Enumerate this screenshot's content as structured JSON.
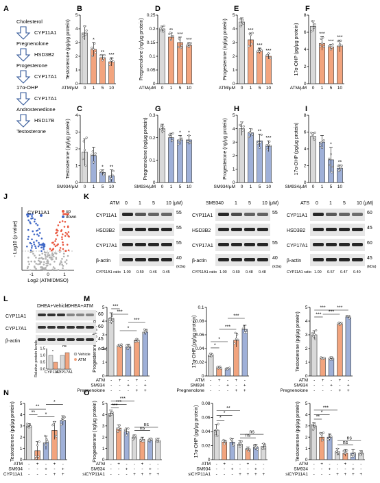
{
  "panel_labels": [
    "A",
    "B",
    "C",
    "D",
    "E",
    "F",
    "G",
    "H",
    "I",
    "J",
    "K",
    "L",
    "M",
    "N",
    "O"
  ],
  "pathway": {
    "steps": [
      "Cholesterol",
      "CYP11A1",
      "Pregnenolone",
      "HSD3B2",
      "Progesterone",
      "CYP17A1",
      "17α-OHP",
      "CYP17A1",
      "Androstenedione",
      "HSD17B",
      "Testosterone"
    ]
  },
  "colors": {
    "atm": "#f2a47e",
    "sm934": "#9fb0d8",
    "vehicle": "#d9d9d9",
    "dhea_atm": "#f2a47e",
    "up": "#e9573f",
    "down": "#4169c7",
    "ns": "#b0b0b0"
  },
  "chart_data": [
    {
      "id": "B",
      "type": "bar",
      "ylabel": "Testosterone (pg/μg protein)",
      "xlabel": "ATM/μM",
      "categories": [
        "0",
        "1",
        "5",
        "10"
      ],
      "values": [
        3.7,
        2.5,
        1.9,
        1.6
      ],
      "errors": [
        0.5,
        0.5,
        0.2,
        0.3
      ],
      "ylim": [
        0,
        5
      ],
      "yticks": [
        0,
        1,
        2,
        3,
        4,
        5
      ],
      "sig": [
        "",
        "*",
        "**",
        "***"
      ],
      "treat": "atm"
    },
    {
      "id": "D",
      "type": "bar",
      "ylabel": "Pregnenolone (ng/μg protein)",
      "xlabel": "ATM/μM",
      "categories": [
        "0",
        "1",
        "5",
        "10"
      ],
      "values": [
        0.2,
        0.17,
        0.15,
        0.14
      ],
      "errors": [
        0.01,
        0.015,
        0.02,
        0.01
      ],
      "ylim": [
        0,
        0.25
      ],
      "yticks": [
        0,
        0.05,
        0.1,
        0.15,
        0.2,
        0.25
      ],
      "sig": [
        "",
        "**",
        "***",
        "***"
      ],
      "treat": "atm"
    },
    {
      "id": "E",
      "type": "bar",
      "ylabel": "Progesterone (ng/μg protein)",
      "xlabel": "ATM/μM",
      "categories": [
        "0",
        "1",
        "5",
        "10"
      ],
      "values": [
        4.5,
        3.2,
        2.4,
        2.0
      ],
      "errors": [
        0.3,
        0.5,
        0.2,
        0.2
      ],
      "ylim": [
        0,
        5
      ],
      "yticks": [
        0,
        1,
        2,
        3,
        4,
        5
      ],
      "sig": [
        "",
        "***",
        "***",
        "***"
      ],
      "treat": "atm"
    },
    {
      "id": "F",
      "type": "bar",
      "ylabel": "17α-OHP (pg/μg protein)",
      "xlabel": "ATM/μM",
      "categories": [
        "0",
        "1",
        "5",
        "10"
      ],
      "values": [
        6.7,
        4.7,
        4.3,
        4.4
      ],
      "errors": [
        0.6,
        0.8,
        0.3,
        0.7
      ],
      "ylim": [
        0,
        8
      ],
      "yticks": [
        0,
        2,
        4,
        6,
        8
      ],
      "sig": [
        "",
        "***",
        "***",
        "***"
      ],
      "treat": "atm"
    },
    {
      "id": "C",
      "type": "bar",
      "ylabel": "Testosterone (pg/μg protein)",
      "xlabel": "SM934/μM",
      "categories": [
        "0",
        "1",
        "5",
        "10"
      ],
      "values": [
        1.8,
        1.6,
        0.6,
        0.4
      ],
      "errors": [
        0.8,
        0.5,
        0.15,
        0.35
      ],
      "ylim": [
        0,
        4
      ],
      "yticks": [
        0,
        1,
        2,
        3,
        4
      ],
      "sig": [
        "",
        "",
        "*",
        "**"
      ],
      "treat": "sm934"
    },
    {
      "id": "G",
      "type": "bar",
      "ylabel": "Pregnenolone (ng/μg protein)",
      "xlabel": "SM934/μM",
      "categories": [
        "0",
        "1",
        "5",
        "10"
      ],
      "values": [
        0.24,
        0.2,
        0.19,
        0.19
      ],
      "errors": [
        0.02,
        0.02,
        0.02,
        0.02
      ],
      "ylim": [
        0,
        0.3
      ],
      "yticks": [
        0,
        0.1,
        0.2,
        0.3
      ],
      "sig": [
        "",
        "",
        "*",
        "*"
      ],
      "treat": "sm934"
    },
    {
      "id": "H",
      "type": "bar",
      "ylabel": "Progesterone (ng/μg protein)",
      "xlabel": "SM934/μM",
      "categories": [
        "0",
        "1",
        "5",
        "10"
      ],
      "values": [
        4.0,
        3.7,
        3.1,
        2.7
      ],
      "errors": [
        0.5,
        0.3,
        0.5,
        0.4
      ],
      "ylim": [
        0,
        5
      ],
      "yticks": [
        0,
        1,
        2,
        3,
        4,
        5
      ],
      "sig": [
        "",
        "",
        "**",
        "***"
      ],
      "treat": "sm934"
    },
    {
      "id": "I",
      "type": "bar",
      "ylabel": "17α-OHP (pg/μg protein)",
      "xlabel": "SM934/μM",
      "categories": [
        "0",
        "1",
        "5",
        "10"
      ],
      "values": [
        5.5,
        4.8,
        2.7,
        1.7
      ],
      "errors": [
        0.4,
        0.8,
        1.5,
        0.4
      ],
      "ylim": [
        0,
        8
      ],
      "yticks": [
        0,
        2,
        4,
        6,
        8
      ],
      "sig": [
        "",
        "",
        "*",
        "**"
      ],
      "treat": "sm934"
    },
    {
      "id": "M1",
      "type": "bar",
      "ylabel": "Progesterone (ng/μg protein)",
      "categories": [
        "1",
        "2",
        "3",
        "4",
        "5"
      ],
      "values": [
        4.2,
        2.2,
        2.1,
        2.6,
        3.2
      ],
      "errors": [
        0.4,
        0.1,
        0.2,
        0.1,
        0.2
      ],
      "ylim": [
        0,
        5
      ],
      "yticks": [
        0,
        1,
        2,
        3,
        4,
        5
      ],
      "treat": "m",
      "rows": [
        {
          "label": "ATM",
          "marks": [
            "-",
            "+",
            "-",
            "+",
            "-"
          ]
        },
        {
          "label": "SM934",
          "marks": [
            "-",
            "-",
            "+",
            "-",
            "+"
          ]
        },
        {
          "label": "Pregnenolone",
          "marks": [
            "-",
            "-",
            "-",
            "+",
            "+"
          ]
        }
      ],
      "brackets": [
        {
          "a": 0,
          "b": 1,
          "y": 4.9,
          "t": "***"
        },
        {
          "a": 0,
          "b": 2,
          "y": 4.5,
          "t": "***"
        },
        {
          "a": 1,
          "b": 3,
          "y": 3.3,
          "t": "*"
        },
        {
          "a": 2,
          "b": 4,
          "y": 3.9,
          "t": "***"
        }
      ]
    },
    {
      "id": "M2",
      "type": "bar",
      "ylabel": "17α-OHP (pg/μg protein)",
      "categories": [
        "1",
        "2",
        "3",
        "4",
        "5"
      ],
      "values": [
        0.03,
        0.012,
        0.011,
        0.052,
        0.068
      ],
      "errors": [
        0.003,
        0.002,
        0.001,
        0.01,
        0.006
      ],
      "ylim": [
        0,
        0.1
      ],
      "yticks": [
        0,
        0.02,
        0.04,
        0.06,
        0.08,
        0.1
      ],
      "treat": "m",
      "rows": [
        {
          "label": "ATM",
          "marks": [
            "-",
            "+",
            "-",
            "+",
            "-"
          ]
        },
        {
          "label": "SM934",
          "marks": [
            "-",
            "-",
            "+",
            "-",
            "+"
          ]
        },
        {
          "label": "Pregnenolone",
          "marks": [
            "-",
            "-",
            "-",
            "+",
            "+"
          ]
        }
      ],
      "brackets": [
        {
          "a": 0,
          "b": 1,
          "y": 0.041,
          "t": "*"
        },
        {
          "a": 0,
          "b": 2,
          "y": 0.05,
          "t": "*"
        },
        {
          "a": 1,
          "b": 3,
          "y": 0.068,
          "t": "***"
        },
        {
          "a": 2,
          "b": 4,
          "y": 0.084,
          "t": "***"
        }
      ]
    },
    {
      "id": "M3",
      "type": "bar",
      "ylabel": "Testosterone (pg/μg protein)",
      "categories": [
        "1",
        "2",
        "3",
        "4",
        "5"
      ],
      "values": [
        3.0,
        1.3,
        1.3,
        3.8,
        4.3
      ],
      "errors": [
        0.3,
        0.05,
        0.1,
        0.1,
        0.1
      ],
      "ylim": [
        0,
        5
      ],
      "yticks": [
        0,
        1,
        2,
        3,
        4,
        5
      ],
      "treat": "m",
      "rows": [
        {
          "label": "ATM",
          "marks": [
            "-",
            "+",
            "-",
            "+",
            "-"
          ]
        },
        {
          "label": "SM934",
          "marks": [
            "-",
            "-",
            "+",
            "-",
            "+"
          ]
        },
        {
          "label": "Pregnenolone",
          "marks": [
            "-",
            "-",
            "-",
            "+",
            "+"
          ]
        }
      ],
      "brackets": [
        {
          "a": 0,
          "b": 1,
          "y": 4.3,
          "t": "***"
        },
        {
          "a": 0,
          "b": 2,
          "y": 4.8,
          "t": "***"
        },
        {
          "a": 1,
          "b": 3,
          "y": 4.5,
          "t": "***"
        },
        {
          "a": 2,
          "b": 4,
          "y": 4.8,
          "t": "***"
        }
      ]
    },
    {
      "id": "N",
      "type": "bar",
      "ylabel": "Testosterone (pg/μg protein)",
      "categories": [
        "1",
        "2",
        "3",
        "4",
        "5"
      ],
      "values": [
        3.0,
        0.8,
        1.5,
        2.6,
        3.5
      ],
      "errors": [
        0.2,
        0.8,
        0.6,
        0.8,
        0.4
      ],
      "ylim": [
        0,
        5
      ],
      "yticks": [
        0,
        1,
        2,
        3,
        4,
        5
      ],
      "treat": "n",
      "rows": [
        {
          "label": "ATM",
          "marks": [
            "-",
            "+",
            "-",
            "+",
            "-"
          ]
        },
        {
          "label": "SM934",
          "marks": [
            "-",
            "-",
            "+",
            "-",
            "+"
          ]
        },
        {
          "label": "CYP11A1",
          "marks": [
            "-",
            "-",
            "-",
            "+",
            "+"
          ]
        }
      ],
      "brackets": [
        {
          "a": 0,
          "b": 1,
          "y": 4.0,
          "t": "**"
        },
        {
          "a": 0,
          "b": 2,
          "y": 4.5,
          "t": "**"
        },
        {
          "a": 1,
          "b": 3,
          "y": 3.8,
          "t": "*"
        },
        {
          "a": 2,
          "b": 4,
          "y": 4.9,
          "t": "*"
        }
      ]
    },
    {
      "id": "O1",
      "type": "bar",
      "ylabel": "Progesterone (ng/μg protein)",
      "categories": [
        "1",
        "2",
        "3",
        "4",
        "5",
        "6",
        "7"
      ],
      "values": [
        4.1,
        2.8,
        2.5,
        2.0,
        1.8,
        1.7,
        1.7
      ],
      "errors": [
        0.3,
        0.3,
        0.3,
        0.2,
        0.2,
        0.2,
        0.2
      ],
      "ylim": [
        0,
        5
      ],
      "yticks": [
        0,
        1,
        2,
        3,
        4,
        5
      ],
      "treat": "o",
      "rows": [
        {
          "label": "ATM",
          "marks": [
            "-",
            "+",
            "-",
            "-",
            "+",
            "-",
            "-"
          ]
        },
        {
          "label": "SM934",
          "marks": [
            "-",
            "-",
            "+",
            "-",
            "-",
            "+",
            "-"
          ]
        },
        {
          "label": "siCYP11A1",
          "marks": [
            "-",
            "-",
            "-",
            "+",
            "+",
            "+",
            "+"
          ]
        }
      ],
      "brackets": [
        {
          "a": 0,
          "b": 1,
          "y": 4.6,
          "t": "***"
        },
        {
          "a": 0,
          "b": 2,
          "y": 4.9,
          "t": "***"
        },
        {
          "a": 0,
          "b": 3,
          "y": 5.2,
          "t": "***"
        },
        {
          "a": 3,
          "b": 5,
          "y": 2.6,
          "t": "ns"
        },
        {
          "a": 3,
          "b": 6,
          "y": 2.9,
          "t": "ns"
        }
      ]
    },
    {
      "id": "O2",
      "type": "bar",
      "ylabel": "17α-OHP (pg/μg protein)",
      "categories": [
        "1",
        "2",
        "3",
        "4",
        "5",
        "6",
        "7"
      ],
      "values": [
        0.042,
        0.025,
        0.025,
        0.022,
        0.015,
        0.018,
        0.019
      ],
      "errors": [
        0.008,
        0.003,
        0.005,
        0.005,
        0.003,
        0.004,
        0.004
      ],
      "ylim": [
        0,
        0.08
      ],
      "yticks": [
        0,
        0.02,
        0.04,
        0.06,
        0.08
      ],
      "treat": "o",
      "rows": [
        {
          "label": "ATM",
          "marks": [
            "-",
            "+",
            "-",
            "-",
            "+",
            "-",
            "-"
          ]
        },
        {
          "label": "SM934",
          "marks": [
            "-",
            "-",
            "+",
            "-",
            "-",
            "+",
            "-"
          ]
        },
        {
          "label": "siCYP11A1",
          "marks": [
            "-",
            "-",
            "-",
            "+",
            "+",
            "+",
            "+"
          ]
        }
      ],
      "brackets": [
        {
          "a": 0,
          "b": 1,
          "y": 0.056,
          "t": "*"
        },
        {
          "a": 0,
          "b": 2,
          "y": 0.063,
          "t": "*"
        },
        {
          "a": 0,
          "b": 3,
          "y": 0.07,
          "t": "**"
        },
        {
          "a": 3,
          "b": 5,
          "y": 0.031,
          "t": "ns"
        },
        {
          "a": 3,
          "b": 6,
          "y": 0.036,
          "t": "ns"
        }
      ]
    },
    {
      "id": "O3",
      "type": "bar",
      "ylabel": "Testosterone (pg/μg protein)",
      "categories": [
        "1",
        "2",
        "3",
        "4",
        "5",
        "6",
        "7"
      ],
      "values": [
        3.0,
        2.0,
        2.0,
        0.7,
        0.6,
        0.6,
        0.6
      ],
      "errors": [
        0.3,
        0.4,
        0.3,
        0.3,
        0.3,
        0.3,
        0.2
      ],
      "ylim": [
        0,
        5
      ],
      "yticks": [
        0,
        1,
        2,
        3,
        4,
        5
      ],
      "treat": "o",
      "rows": [
        {
          "label": "ATM",
          "marks": [
            "-",
            "+",
            "-",
            "-",
            "+",
            "-",
            "-"
          ]
        },
        {
          "label": "SM934",
          "marks": [
            "-",
            "-",
            "+",
            "-",
            "-",
            "+",
            "-"
          ]
        },
        {
          "label": "siCYP11A1",
          "marks": [
            "-",
            "-",
            "-",
            "+",
            "+",
            "+",
            "+"
          ]
        }
      ],
      "brackets": [
        {
          "a": 0,
          "b": 1,
          "y": 3.6,
          "t": "**"
        },
        {
          "a": 0,
          "b": 2,
          "y": 4.0,
          "t": "*"
        },
        {
          "a": 0,
          "b": 3,
          "y": 4.4,
          "t": "***"
        },
        {
          "a": 3,
          "b": 5,
          "y": 1.3,
          "t": "ns"
        },
        {
          "a": 3,
          "b": 6,
          "y": 1.7,
          "t": "ns"
        }
      ]
    }
  ],
  "volcano": {
    "title": "CYP11A1",
    "ylabel": "- Log10 (p value)",
    "xlabel": "Log2 (ATM/DMSO)",
    "legend": [
      "up",
      "down"
    ],
    "xticks": [
      "-1",
      "0",
      "1"
    ]
  },
  "blots": [
    {
      "id": "K1",
      "header": "ATM",
      "doses": [
        "0",
        "1",
        "5",
        "10 (μM)"
      ],
      "rows": [
        "CYP11A1",
        "HSD3B2",
        "CYP17A1",
        "β-actin"
      ],
      "markers": [
        "55",
        "55",
        "55",
        "40"
      ],
      "ratio_label": "CYP11A1 ratio",
      "ratios": [
        "1.00",
        "0.59",
        "0.46",
        "0.45"
      ],
      "unit": "(kDa)"
    },
    {
      "id": "K2",
      "header": "SM934",
      "doses": [
        "0",
        "1",
        "5",
        "10 (μM)"
      ],
      "rows": [
        "CYP11A1",
        "HSD3B2",
        "CYP17A1",
        "β-actin"
      ],
      "markers": [
        "55",
        "",
        "55",
        "40"
      ],
      "ratio_label": "CYP11A1 ratio",
      "ratios": [
        "1.00",
        "0.69",
        "0.48",
        "0.48"
      ],
      "unit": "(kDa)"
    },
    {
      "id": "K3",
      "header": "ATS",
      "doses": [
        "0",
        "1",
        "5",
        "10 (μM)"
      ],
      "rows": [
        "CYP11A1",
        "HSD3B2",
        "CYP17A1",
        "β-actin"
      ],
      "markers": [
        "60",
        "45",
        "60",
        "45"
      ],
      "ratio_label": "CYP11A1 ratio",
      "ratios": [
        "1.00",
        "0.57",
        "0.47",
        "0.40"
      ],
      "unit": "(kDa)"
    }
  ],
  "blot_L": {
    "groups": [
      "DHEA+Vehicle",
      "DHEA+ATM"
    ],
    "rows": [
      "CYP11A1",
      "CYP17A1",
      "β-actin"
    ],
    "markers": [
      "60",
      "60",
      "45"
    ],
    "unit": "(kDa)",
    "inset": {
      "ylabel": "Relative protein levels",
      "categories": [
        "CYP11A1",
        "CYP17A1"
      ],
      "legend": [
        "Vehicle",
        "ATM"
      ],
      "vehicle": [
        1.0,
        1.0
      ],
      "atm": [
        0.5,
        1.2
      ],
      "yticks": [
        "0.0",
        "0.5",
        "1.0",
        "1.5"
      ],
      "sig": [
        "*",
        "ns"
      ]
    }
  }
}
